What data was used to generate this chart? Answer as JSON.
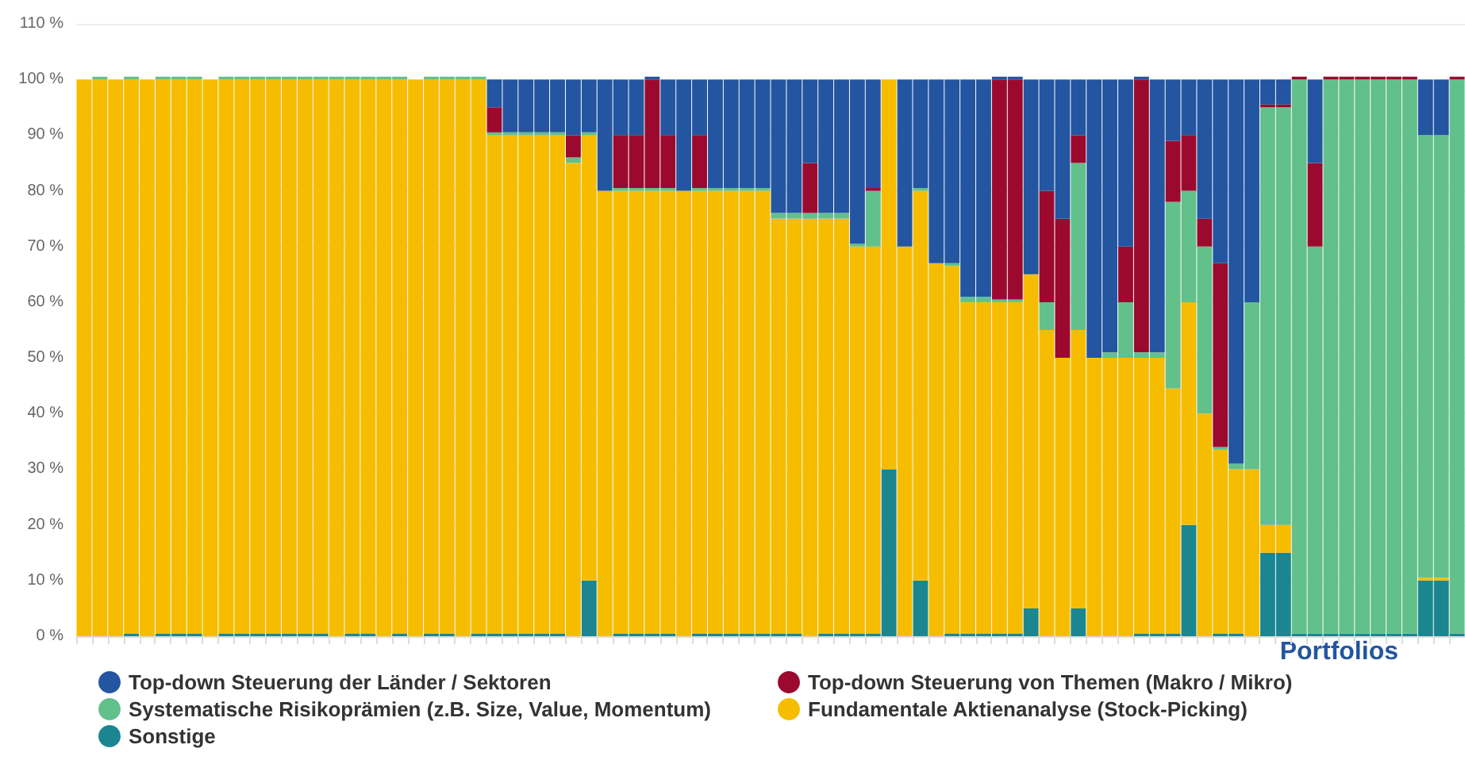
{
  "chart_data": {
    "type": "bar",
    "stacked": true,
    "xlabel": "Portfolios",
    "categories": [
      null,
      null,
      null,
      null,
      null,
      null,
      null,
      null,
      null,
      null,
      null,
      null,
      null,
      null,
      null,
      null,
      null,
      null,
      null,
      null,
      null,
      null,
      null,
      null,
      null,
      null,
      null,
      null,
      null,
      null,
      null,
      null,
      null,
      null,
      null,
      null,
      null,
      null,
      null,
      null,
      null,
      null,
      null,
      null,
      null,
      null,
      null,
      null,
      null,
      null,
      null,
      null,
      null,
      null,
      null,
      null,
      null,
      null,
      null,
      null,
      null,
      null,
      null,
      null,
      null,
      null,
      null,
      null,
      null,
      null,
      null,
      null,
      null,
      null,
      null,
      null,
      null,
      null,
      null,
      null,
      null,
      null,
      null,
      null,
      null,
      null,
      null,
      null
    ],
    "series": [
      {
        "name": "Sonstige",
        "color": "#1b8690",
        "values": [
          0,
          0,
          0,
          0.5,
          0,
          0.5,
          0.5,
          0.5,
          0,
          0.5,
          0.5,
          0.5,
          0.5,
          0.5,
          0.5,
          0.5,
          0,
          0.5,
          0.5,
          0,
          0.5,
          0,
          0.5,
          0.5,
          0,
          0.5,
          0.5,
          0.5,
          0.5,
          0.5,
          0.5,
          0,
          10,
          0,
          0.5,
          0.5,
          0.5,
          0.5,
          0,
          0.5,
          0.5,
          0.5,
          0.5,
          0.5,
          0.5,
          0.5,
          0,
          0.5,
          0.5,
          0.5,
          0.5,
          30,
          0,
          10,
          0,
          0.5,
          0.5,
          0.5,
          0.5,
          0.5,
          5,
          0,
          0,
          5,
          0,
          0,
          0,
          0.5,
          0.5,
          0.5,
          20,
          0,
          0.5,
          0.5,
          0,
          15,
          15,
          0.5,
          0.5,
          0.5,
          0.5,
          0.5,
          0.5,
          0.5,
          0.5,
          10,
          10,
          0.5
        ]
      },
      {
        "name": "Fundamentale Aktienanalyse (Stock-Picking)",
        "color": "#f6bd00",
        "values": [
          100,
          100,
          100,
          99.5,
          100,
          99.5,
          99.5,
          99.5,
          100,
          99.5,
          99.5,
          99.5,
          99.5,
          99.5,
          99.5,
          99.5,
          100,
          99.5,
          99.5,
          100,
          99.5,
          100,
          99.5,
          99.5,
          100,
          99.5,
          89.5,
          89.5,
          89.5,
          89.5,
          89.5,
          85,
          80,
          80,
          79.5,
          79.5,
          79.5,
          79.5,
          80,
          79.5,
          79.5,
          79.5,
          79.5,
          79.5,
          74.5,
          74.5,
          75,
          74.5,
          74.5,
          69.5,
          69.5,
          70,
          70,
          70,
          67,
          66,
          59.5,
          59.5,
          59.5,
          59.5,
          60,
          55,
          50,
          50,
          50,
          50,
          50,
          49.5,
          49.5,
          44,
          40,
          40,
          33,
          29.5,
          30,
          5,
          5,
          0,
          0,
          0,
          0,
          0,
          0,
          0,
          0,
          0.5,
          0.5,
          0
        ]
      },
      {
        "name": "Systematische Risikoprämien (z.B. Size, Value, Momentum)",
        "color": "#62c08b",
        "values": [
          0,
          0.5,
          0,
          0.5,
          0,
          0.5,
          0.5,
          0.5,
          0,
          0.5,
          0.5,
          0.5,
          0.5,
          0.5,
          0.5,
          0.5,
          0.5,
          0.5,
          0.5,
          0.5,
          0.5,
          0,
          0.5,
          0.5,
          0.5,
          0.5,
          0.5,
          0.5,
          0.5,
          0.5,
          0.5,
          1,
          0.5,
          0,
          0.5,
          0.5,
          0.5,
          0.5,
          0,
          0.5,
          0.5,
          0.5,
          0.5,
          0.5,
          1,
          1,
          1,
          1,
          1,
          0.5,
          10,
          0,
          0,
          0.5,
          0,
          0.5,
          1,
          1,
          0.5,
          0.5,
          0,
          5,
          0,
          30,
          0,
          1,
          10,
          1,
          1,
          33.5,
          20,
          30,
          0.5,
          1,
          30,
          75,
          75,
          99.5,
          69.5,
          99.5,
          99.5,
          99.5,
          99.5,
          99.5,
          99.5,
          79.5,
          79.5,
          99.5
        ]
      },
      {
        "name": "Top-down Steuerung von Themen (Makro / Mikro)",
        "color": "#9b0a2e",
        "values": [
          0,
          0,
          0,
          0,
          0,
          0,
          0,
          0,
          0,
          0,
          0,
          0,
          0,
          0,
          0,
          0,
          0,
          0,
          0,
          0,
          0,
          0,
          0,
          0,
          0,
          0,
          4.5,
          0,
          0,
          0,
          0,
          4,
          0,
          0,
          9.5,
          9.5,
          19.5,
          9.5,
          0,
          9.5,
          0,
          0,
          0,
          0,
          0,
          0,
          9,
          0,
          0,
          0,
          0.5,
          0,
          0,
          0,
          0,
          0,
          0,
          0,
          39.5,
          39.5,
          0,
          20,
          25,
          5,
          0,
          0,
          10,
          49,
          0,
          11,
          10,
          5,
          33,
          0,
          0,
          0.5,
          0.5,
          0.5,
          15,
          0.5,
          0.5,
          0.5,
          0.5,
          0.5,
          0.5,
          0,
          0,
          0.5
        ]
      },
      {
        "name": "Top-down Steuerung der Länder / Sektoren",
        "color": "#2355a0",
        "values": [
          0,
          0,
          0,
          0,
          0,
          0,
          0,
          0,
          0,
          0,
          0,
          0,
          0,
          0,
          0,
          0,
          0,
          0,
          0,
          0,
          0,
          0,
          0,
          0,
          0,
          0,
          5,
          9.5,
          9.5,
          9.5,
          9.5,
          10,
          9.5,
          20,
          10,
          10,
          0.5,
          10,
          20,
          10,
          19.5,
          19.5,
          19.5,
          19.5,
          24,
          24,
          15,
          24,
          24,
          29.5,
          19.5,
          0,
          30,
          19.5,
          33,
          33,
          39,
          39,
          0.5,
          0.5,
          35,
          20,
          25,
          10,
          50,
          49,
          30,
          0.5,
          49,
          11,
          10,
          25,
          33,
          69,
          40,
          4.5,
          4.5,
          0,
          15,
          0,
          0,
          0,
          0,
          0,
          0,
          10,
          10,
          0
        ]
      }
    ],
    "ylim": [
      0,
      110
    ],
    "yticks": [
      {
        "value": 0,
        "label": "0 %"
      },
      {
        "value": 10,
        "label": "10 %"
      },
      {
        "value": 20,
        "label": "20 %"
      },
      {
        "value": 30,
        "label": "30 %"
      },
      {
        "value": 40,
        "label": "40 %"
      },
      {
        "value": 50,
        "label": "50 %"
      },
      {
        "value": 60,
        "label": "60 %"
      },
      {
        "value": 70,
        "label": "70 %"
      },
      {
        "value": 80,
        "label": "80 %"
      },
      {
        "value": 90,
        "label": "90 %"
      },
      {
        "value": 100,
        "label": "100 %"
      },
      {
        "value": 110,
        "label": "110 %"
      }
    ],
    "grid": "y",
    "legend": "bottom"
  }
}
